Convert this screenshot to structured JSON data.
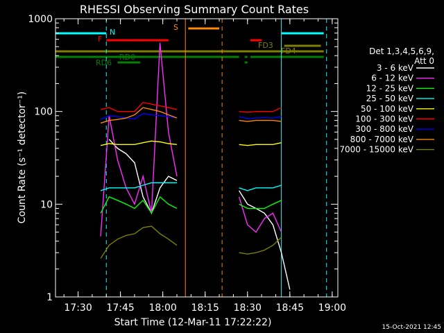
{
  "chart_data": {
    "type": "line",
    "title": "RHESSI Observing Summary Count Rates",
    "xlabel": "Start Time (12-Mar-11 17:22:22)",
    "ylabel": "Count Rate (s⁻¹ detector⁻¹)",
    "yscale": "log",
    "ylim": [
      1,
      1000
    ],
    "xlim": [
      "17:22",
      "19:02"
    ],
    "x_ticks": [
      "17:30",
      "17:45",
      "18:00",
      "18:15",
      "18:30",
      "18:45",
      "19:00"
    ],
    "y_ticks": [
      "1",
      "10",
      "100",
      "1000"
    ],
    "timestamp": "15-Oct-2021 12:45",
    "legend_title": [
      "Det 1,3,4,5,6,9,",
      "Att 0"
    ],
    "x": [
      "17:30",
      "17:34",
      "17:38",
      "17:41",
      "17:44",
      "17:47",
      "17:50",
      "17:53",
      "17:56",
      "17:59",
      "18:02",
      "18:05",
      "18:08",
      "18:24",
      "18:27",
      "18:30",
      "18:33",
      "18:36",
      "18:39",
      "18:42",
      "18:45"
    ],
    "series": [
      {
        "name": "3 - 6 keV",
        "color": "#ffffff",
        "values": [
          null,
          null,
          null,
          50,
          40,
          35,
          28,
          12,
          8,
          15,
          20,
          18,
          null,
          null,
          14,
          10,
          9,
          8,
          6,
          3,
          1.2
        ]
      },
      {
        "name": "6 - 12 keV",
        "color": "#ff2cff",
        "values": [
          null,
          null,
          4.5,
          90,
          30,
          15,
          10,
          20,
          8,
          550,
          60,
          20,
          null,
          null,
          12,
          6,
          5,
          7,
          8,
          5,
          null
        ]
      },
      {
        "name": "12 - 25 keV",
        "color": "#00ff00",
        "values": [
          null,
          null,
          8,
          12,
          11,
          10,
          9,
          11,
          8,
          12,
          10,
          9,
          null,
          null,
          10,
          9,
          9,
          9,
          10,
          11,
          null
        ]
      },
      {
        "name": "25 - 50 keV",
        "color": "#00ffff",
        "values": [
          null,
          null,
          14,
          15,
          15,
          15,
          15,
          16,
          17,
          17,
          17,
          17,
          null,
          null,
          15,
          14,
          15,
          15,
          15,
          16,
          null
        ]
      },
      {
        "name": "50 - 100 keV",
        "color": "#ffff00",
        "values": [
          null,
          null,
          43,
          45,
          44,
          44,
          44,
          46,
          48,
          47,
          45,
          44,
          null,
          null,
          44,
          43,
          44,
          44,
          44,
          46,
          null
        ]
      },
      {
        "name": "100 - 300 keV",
        "color": "#ff0000",
        "values": [
          null,
          null,
          105,
          110,
          100,
          100,
          100,
          125,
          120,
          115,
          110,
          105,
          null,
          null,
          100,
          98,
          100,
          100,
          100,
          110,
          null
        ]
      },
      {
        "name": "300 - 800 keV",
        "color": "#0000ff",
        "values": [
          null,
          null,
          82,
          90,
          88,
          85,
          83,
          95,
          92,
          90,
          88,
          85,
          null,
          null,
          88,
          84,
          85,
          86,
          85,
          88,
          null
        ]
      },
      {
        "name": "800 - 7000 keV",
        "color": "#ff8800",
        "values": [
          null,
          null,
          75,
          80,
          82,
          85,
          92,
          110,
          105,
          100,
          92,
          85,
          null,
          null,
          80,
          78,
          80,
          80,
          80,
          78,
          null
        ]
      },
      {
        "name": "7000 - 15000 keV",
        "color": "#808000",
        "values": [
          null,
          null,
          2.6,
          3.6,
          4.2,
          4.6,
          4.8,
          5.6,
          5.8,
          4.8,
          4.2,
          3.6,
          null,
          null,
          3.0,
          2.9,
          3.0,
          3.2,
          3.6,
          4.4,
          null
        ]
      }
    ],
    "flags": [
      {
        "label": "N",
        "color": "#00ffff",
        "segments": [
          [
            "17:22",
            "17:40"
          ],
          [
            "18:42",
            "18:57"
          ]
        ]
      },
      {
        "label": "F",
        "color": "#ff0000",
        "segments": [
          [
            "17:40",
            "18:02"
          ],
          [
            "18:31",
            "18:35"
          ]
        ]
      },
      {
        "label": "S",
        "color": "#ff8800",
        "segments": [
          [
            "18:09",
            "18:20"
          ]
        ]
      },
      {
        "label": "FD3",
        "color": "#808000",
        "segments": [
          [
            "18:43",
            "18:56"
          ]
        ]
      },
      {
        "label": "FD4",
        "color": "#808000",
        "segments": [
          [
            "17:22",
            "18:57"
          ]
        ]
      },
      {
        "label": "RD0",
        "color": "#008000",
        "segments": [
          [
            "17:22",
            "18:27"
          ],
          [
            "18:29",
            "18:30"
          ],
          [
            "18:31",
            "18:57"
          ]
        ]
      },
      {
        "label": "RD6",
        "color": "#008000",
        "segments": [
          [
            "17:44",
            "17:52"
          ],
          [
            "18:29",
            "18:30"
          ]
        ]
      }
    ],
    "vlines": [
      {
        "time": "17:22",
        "color": "#00ffff",
        "style": "solid"
      },
      {
        "time": "17:40",
        "color": "#00ffff",
        "style": "dashed"
      },
      {
        "time": "18:08",
        "color": "#ff8800",
        "style": "solid"
      },
      {
        "time": "18:21",
        "color": "#ff8800",
        "style": "dashed"
      },
      {
        "time": "18:42",
        "color": "#00ffff",
        "style": "solid"
      },
      {
        "time": "18:58",
        "color": "#00ffff",
        "style": "dashed"
      }
    ]
  }
}
